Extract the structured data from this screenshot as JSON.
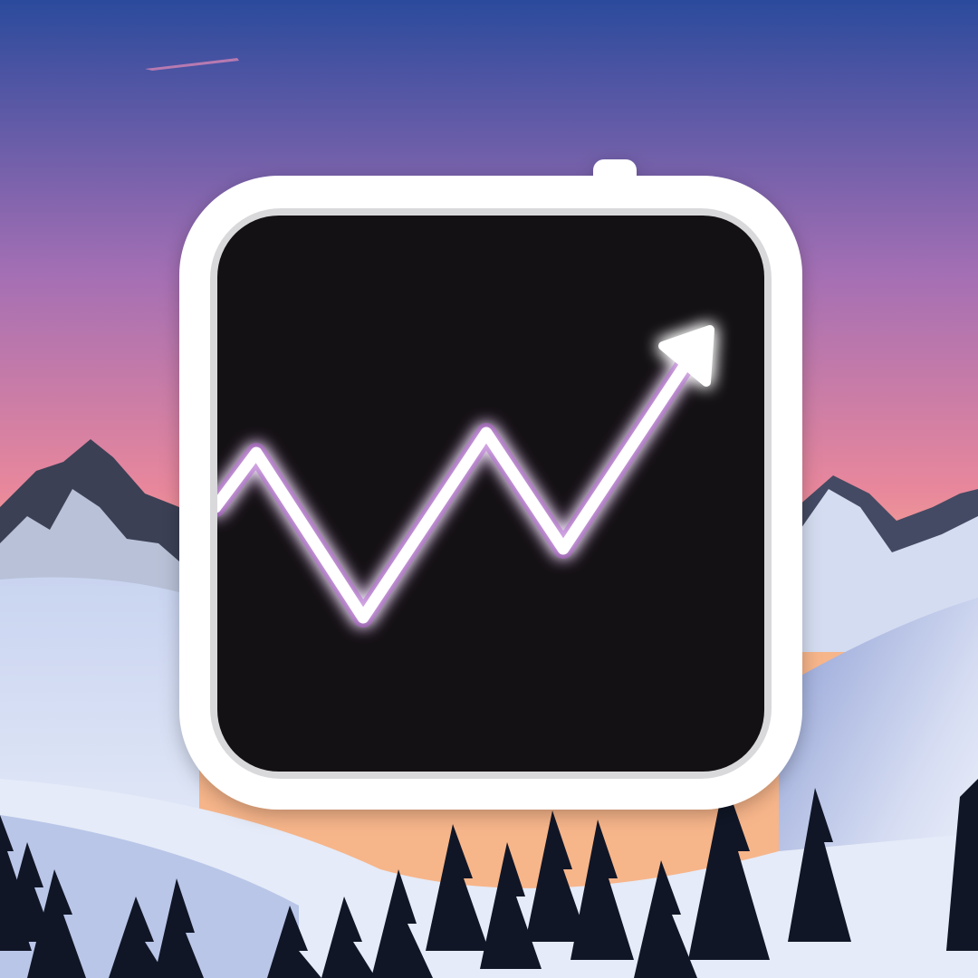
{
  "app_icon": {
    "name": "activity-monitor-style-app-icon",
    "frame_color": "#ffffff",
    "screen_color": "#141114",
    "glow_color": "#b237d6",
    "line_color": "#ffffff",
    "baseline_color": "#a63ccc",
    "icon_symbol": "trending-up-arrow-icon"
  },
  "background": {
    "scene": "snowy-mountains-at-dusk",
    "sky_top_color": "#2b4a9c",
    "sky_mid_color": "#a46fb4",
    "sky_horizon_color": "#f7b58a",
    "snow_color": "#dfe7f6",
    "shadow_snow_color": "#a7b6df",
    "rock_color": "#3a3f52",
    "tree_color": "#101626"
  }
}
